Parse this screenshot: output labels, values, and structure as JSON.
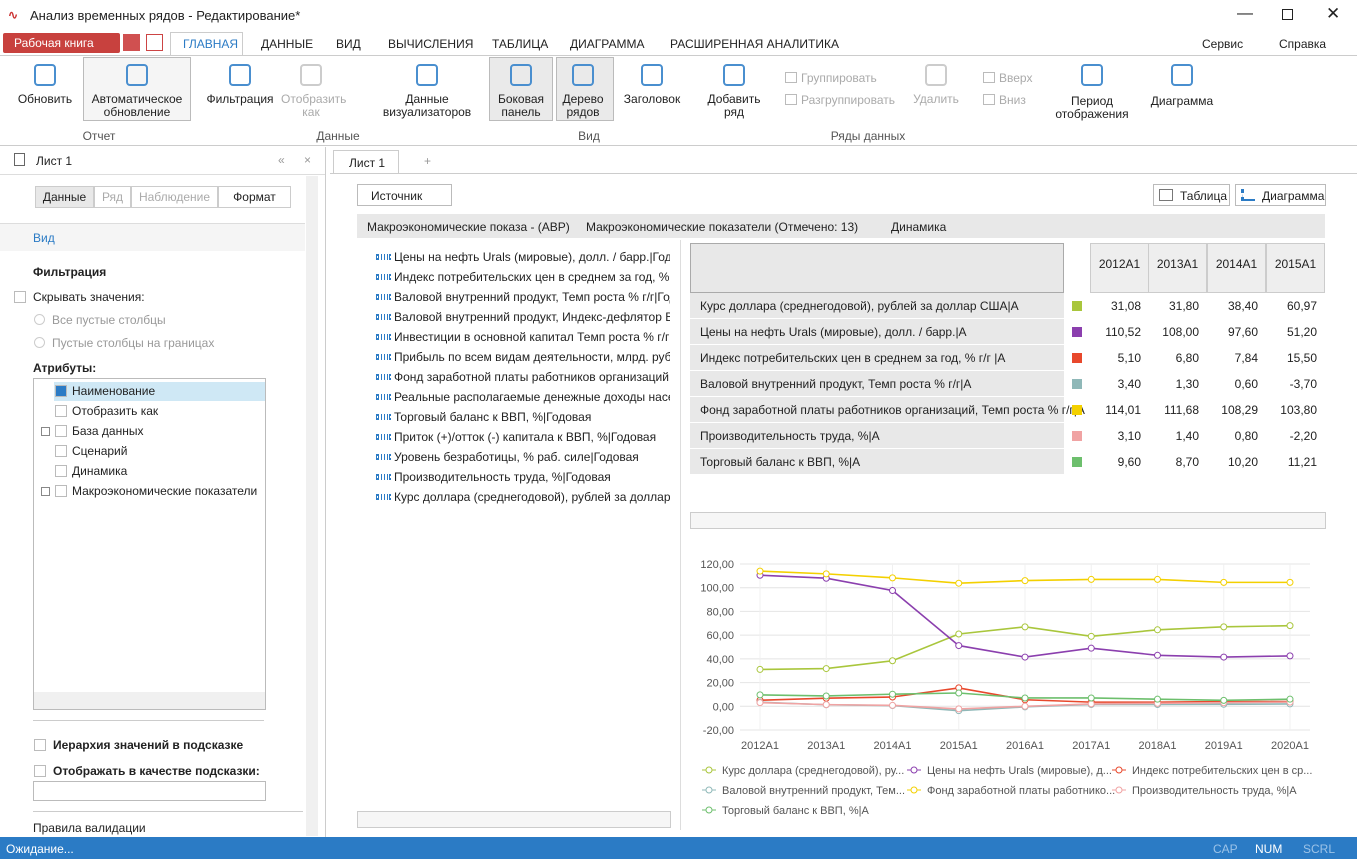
{
  "window": {
    "title": "Анализ временных рядов - Редактирование*"
  },
  "ribbon": {
    "workbook": "Рабочая книга",
    "tabs": [
      "ГЛАВНАЯ",
      "ДАННЫЕ",
      "ВИД",
      "ВЫЧИСЛЕНИЯ",
      "ТАБЛИЦА",
      "ДИАГРАММА",
      "РАСШИРЕННАЯ АНАЛИТИКА"
    ],
    "right": [
      "Сервис",
      "Справка"
    ],
    "groups": [
      {
        "label": "Отчет",
        "buttons": [
          "Обновить",
          "Автоматическое обновление"
        ]
      },
      {
        "label": "Данные",
        "buttons": [
          "Фильтрация",
          "Отобразить как",
          "Данные визуализаторов"
        ]
      },
      {
        "label": "Вид",
        "buttons": [
          "Боковая панель",
          "Дерево рядов",
          "Заголовок"
        ]
      },
      {
        "label": "Ряды данных",
        "buttons": [
          "Добавить ряд",
          "Группировать",
          "Разгруппировать",
          "Удалить",
          "Вверх",
          "Вниз"
        ]
      }
    ],
    "extra": [
      "Период отображения",
      "Диаграмма"
    ]
  },
  "side_panel": {
    "sheet": "Лист 1",
    "tabs": [
      "Данные",
      "Ряд",
      "Наблюдение",
      "Формат"
    ],
    "section": "Вид",
    "filter_title": "Фильтрация",
    "hide_values": "Скрывать значения:",
    "radios": [
      "Все пустые столбцы",
      "Пустые столбцы на границах"
    ],
    "attributes_title": "Атрибуты:",
    "attributes": [
      "Наименование",
      "Отобразить как",
      "База данных",
      "Сценарий",
      "Динамика",
      "Макроэкономические показатели"
    ],
    "hierarchy": "Иерархия значений в подсказке",
    "tooltip": "Отображать в качестве подсказки:",
    "validation": "Правила валидации"
  },
  "workspace": {
    "tab": "Лист 1",
    "source": "Источник",
    "table_button": "Таблица",
    "chart_button": "Диаграмма",
    "breadcrumb": [
      "Макроэкономические показа - (АВР)",
      "Макроэкономические показатели (Отмечено: 13)",
      "Динамика"
    ],
    "series_list": [
      "Цены на нефть Urals (мировые), долл. / барр.|Годов",
      "Индекс  потребительских цен в среднем за год, % г/",
      "Валовой внутренний продукт, Темп роста % г/г|Годо",
      "Валовой внутренний продукт, Индекс-дефлятор ВВ",
      "Инвестиции в основной капитал Темп роста % г/г|Г",
      "Прибыль по всем видам деятельности, млрд. руб.|Го",
      "Фонд заработной платы работников организаций,",
      "Реальные располагаемые денежные доходы населе",
      "Торговый баланс к ВВП, %|Годовая",
      "Приток (+)/отток (-) капитала к ВВП, %|Годовая",
      "Уровень безработицы, % раб. силе|Годовая",
      "Производительность труда, %|Годовая",
      "Курс доллара (среднегодовой), рублей за доллар СШ"
    ]
  },
  "table": {
    "columns": [
      "2012A1",
      "2013A1",
      "2014A1",
      "2015A1"
    ],
    "rows": [
      {
        "name": "Курс доллара (среднегодовой), рублей за доллар США|А",
        "color": "#a9c63c",
        "cells": [
          "31,08",
          "31,80",
          "38,40",
          "60,97"
        ]
      },
      {
        "name": "Цены на нефть Urals (мировые), долл. / барр.|А",
        "color": "#8b3fae",
        "cells": [
          "110,52",
          "108,00",
          "97,60",
          "51,20"
        ]
      },
      {
        "name": "Индекс потребительских цен в среднем за год, % г/г |А",
        "color": "#e8482c",
        "cells": [
          "5,10",
          "6,80",
          "7,84",
          "15,50"
        ]
      },
      {
        "name": "Валовой внутренний продукт, Темп роста % г/г|А",
        "color": "#8fb8b8",
        "cells": [
          "3,40",
          "1,30",
          "0,60",
          "-3,70"
        ]
      },
      {
        "name": "Фонд заработной платы работников организаций, Темп роста % г/г|А",
        "color": "#f3d000",
        "cells": [
          "114,01",
          "111,68",
          "108,29",
          "103,80"
        ]
      },
      {
        "name": "Производительность труда, %|А",
        "color": "#f0a3a3",
        "cells": [
          "3,10",
          "1,40",
          "0,80",
          "-2,20"
        ]
      },
      {
        "name": "Торговый баланс к ВВП, %|А",
        "color": "#6dbf6d",
        "cells": [
          "9,60",
          "8,70",
          "10,20",
          "11,21"
        ]
      }
    ]
  },
  "chart_data": {
    "type": "line",
    "categories": [
      "2012A1",
      "2013A1",
      "2014A1",
      "2015A1",
      "2016A1",
      "2017A1",
      "2018A1",
      "2019A1",
      "2020A1"
    ],
    "ylim": [
      -20,
      120
    ],
    "yticks": [
      {
        "value": -20,
        "label": "-20,00"
      },
      {
        "value": 0,
        "label": "0,00"
      },
      {
        "value": 20,
        "label": "20,00"
      },
      {
        "value": 40,
        "label": "40,00"
      },
      {
        "value": 60,
        "label": "60,00"
      },
      {
        "value": 80,
        "label": "80,00"
      },
      {
        "value": 100,
        "label": "100,00"
      },
      {
        "value": 120,
        "label": "120,00"
      }
    ],
    "grid": true,
    "series": [
      {
        "name": "Курс доллара (среднегодовой), ру...",
        "color": "#a9c63c",
        "values": [
          31.08,
          31.8,
          38.4,
          60.97,
          67,
          59,
          64.5,
          67,
          68
        ]
      },
      {
        "name": "Цены на нефть Urals (мировые), д...",
        "color": "#8b3fae",
        "values": [
          110.52,
          108,
          97.6,
          51.2,
          41.5,
          49,
          43,
          41.5,
          42.5
        ]
      },
      {
        "name": "Индекс потребительских цен в ср...",
        "color": "#e8482c",
        "values": [
          5.1,
          6.8,
          7.84,
          15.5,
          5.5,
          3.5,
          3.5,
          4,
          4
        ]
      },
      {
        "name": "Валовой внутренний продукт, Тем...",
        "color": "#8fb8b8",
        "values": [
          3.4,
          1.3,
          0.6,
          -3.7,
          -0.5,
          1.5,
          1.5,
          1.7,
          2
        ]
      },
      {
        "name": "Фонд заработной платы работнико...",
        "color": "#f3d000",
        "values": [
          114.01,
          111.68,
          108.29,
          103.8,
          106,
          107,
          107,
          104.5,
          104.5
        ]
      },
      {
        "name": "Производительность труда, %|А",
        "color": "#f0a3a3",
        "values": [
          3.1,
          1.4,
          0.8,
          -2.2,
          0,
          2,
          2.5,
          3,
          3.5
        ]
      },
      {
        "name": "Торговый баланс к ВВП, %|А",
        "color": "#6dbf6d",
        "values": [
          9.6,
          8.7,
          10.2,
          11.21,
          7,
          7,
          6,
          5,
          6
        ]
      }
    ]
  },
  "status": {
    "text": "Ожидание...",
    "indicators": [
      "CAP",
      "NUM",
      "SCRL"
    ]
  }
}
